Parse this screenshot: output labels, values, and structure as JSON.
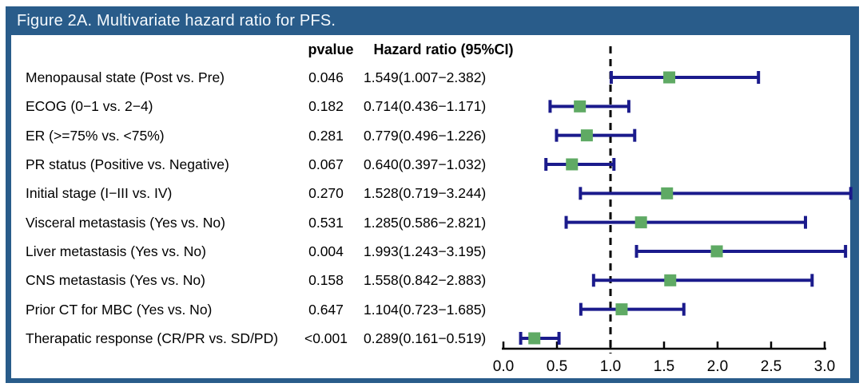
{
  "chart_data": {
    "type": "forest",
    "title": "Figure 2A. Multivariate hazard ratio for PFS.",
    "columns": [
      "pvalue",
      "Hazard ratio (95%CI)"
    ],
    "rows": [
      {
        "label": "Menopausal state (Post vs. Pre)",
        "pvalue": "0.046",
        "hr_ci": "1.549(1.007−2.382)",
        "hr": 1.549,
        "low": 1.007,
        "high": 2.382
      },
      {
        "label": "ECOG (0−1 vs. 2−4)",
        "pvalue": "0.182",
        "hr_ci": "0.714(0.436−1.171)",
        "hr": 0.714,
        "low": 0.436,
        "high": 1.171
      },
      {
        "label": "ER (>=75% vs. <75%)",
        "pvalue": "0.281",
        "hr_ci": "0.779(0.496−1.226)",
        "hr": 0.779,
        "low": 0.496,
        "high": 1.226
      },
      {
        "label": "PR status (Positive vs. Negative)",
        "pvalue": "0.067",
        "hr_ci": "0.640(0.397−1.032)",
        "hr": 0.64,
        "low": 0.397,
        "high": 1.032
      },
      {
        "label": "Initial stage (I−III vs. IV)",
        "pvalue": "0.270",
        "hr_ci": "1.528(0.719−3.244)",
        "hr": 1.528,
        "low": 0.719,
        "high": 3.244
      },
      {
        "label": "Visceral metastasis (Yes vs. No)",
        "pvalue": "0.531",
        "hr_ci": "1.285(0.586−2.821)",
        "hr": 1.285,
        "low": 0.586,
        "high": 2.821
      },
      {
        "label": "Liver metastasis (Yes vs. No)",
        "pvalue": "0.004",
        "hr_ci": "1.993(1.243−3.195)",
        "hr": 1.993,
        "low": 1.243,
        "high": 3.195
      },
      {
        "label": "CNS metastasis (Yes vs. No)",
        "pvalue": "0.158",
        "hr_ci": "1.558(0.842−2.883)",
        "hr": 1.558,
        "low": 0.842,
        "high": 2.883
      },
      {
        "label": "Prior CT for MBC (Yes vs. No)",
        "pvalue": "0.647",
        "hr_ci": "1.104(0.723−1.685)",
        "hr": 1.104,
        "low": 0.723,
        "high": 1.685
      },
      {
        "label": "Therapatic response (CR/PR vs. SD/PD)",
        "pvalue": "<0.001",
        "hr_ci": "0.289(0.161−0.519)",
        "hr": 0.289,
        "low": 0.161,
        "high": 0.519
      }
    ],
    "axis": {
      "xlim": [
        0.0,
        3.0
      ],
      "ticks": [
        0.0,
        0.5,
        1.0,
        1.5,
        2.0,
        2.5,
        3.0
      ],
      "tick_labels": [
        "0.0",
        "0.5",
        "1.0",
        "1.5",
        "2.0",
        "2.5",
        "3.0"
      ],
      "ref_line": 1.0,
      "grid": false
    },
    "colors": {
      "header_blue": "#295C8A",
      "ci_navy": "#1B1B8C",
      "marker_green": "#5FAA64",
      "axis_black": "#000000"
    }
  }
}
